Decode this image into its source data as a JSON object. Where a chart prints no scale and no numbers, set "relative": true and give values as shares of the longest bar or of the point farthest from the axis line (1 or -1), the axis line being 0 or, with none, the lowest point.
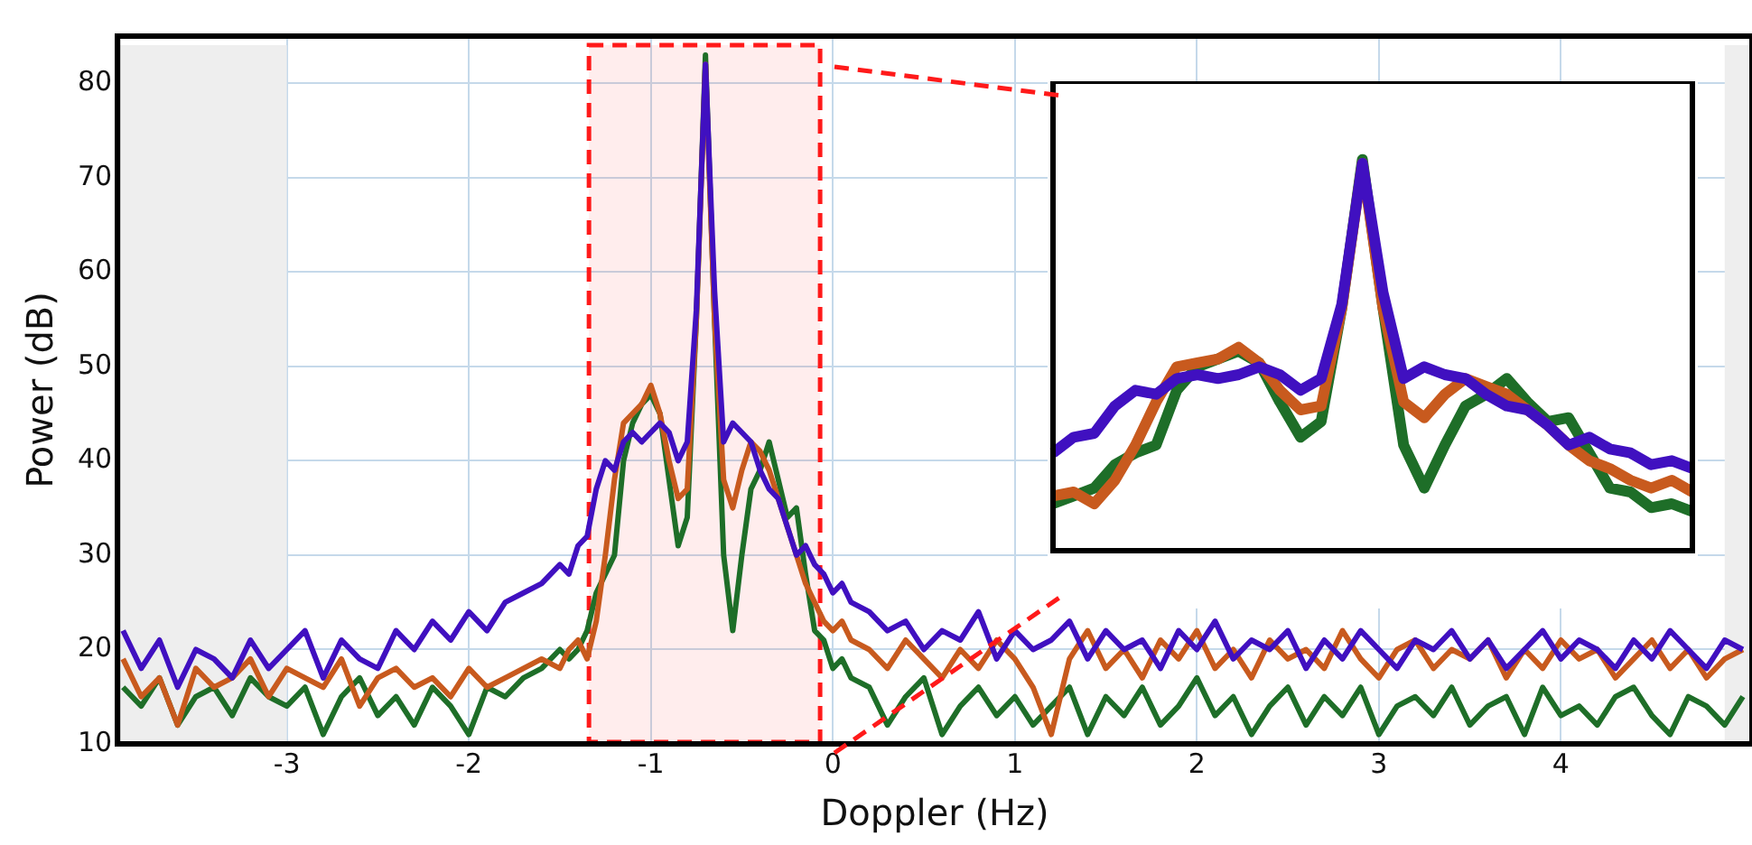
{
  "chart_data": [
    {
      "type": "line",
      "xlabel": "Doppler (Hz)",
      "ylabel": "Power (dB)",
      "x": [
        -3.9,
        -3.8,
        -3.7,
        -3.6,
        -3.5,
        -3.4,
        -3.3,
        -3.2,
        -3.1,
        -3.0,
        -2.9,
        -2.8,
        -2.7,
        -2.6,
        -2.5,
        -2.4,
        -2.3,
        -2.2,
        -2.1,
        -2.0,
        -1.9,
        -1.8,
        -1.7,
        -1.6,
        -1.5,
        -1.45,
        -1.4,
        -1.35,
        -1.3,
        -1.25,
        -1.2,
        -1.15,
        -1.1,
        -1.05,
        -1.0,
        -0.95,
        -0.9,
        -0.85,
        -0.8,
        -0.75,
        -0.7,
        -0.65,
        -0.6,
        -0.55,
        -0.5,
        -0.45,
        -0.4,
        -0.35,
        -0.3,
        -0.25,
        -0.2,
        -0.15,
        -0.1,
        -0.05,
        0,
        0.05,
        0.1,
        0.2,
        0.3,
        0.4,
        0.5,
        0.6,
        0.7,
        0.8,
        0.9,
        1.0,
        1.1,
        1.2,
        1.3,
        1.4,
        1.5,
        1.6,
        1.7,
        1.8,
        1.9,
        2.0,
        2.1,
        2.2,
        2.3,
        2.4,
        2.5,
        2.6,
        2.7,
        2.8,
        2.9,
        3.0,
        3.1,
        3.2,
        3.3,
        3.4,
        3.5,
        3.6,
        3.7,
        3.8,
        3.9,
        4.0,
        4.1,
        4.2,
        4.3,
        4.4,
        4.5,
        4.6,
        4.7,
        4.8,
        4.9,
        5.0
      ],
      "series": [
        {
          "color": "#4010c0",
          "values": [
            22,
            18,
            21,
            16,
            20,
            19,
            17,
            21,
            18,
            20,
            22,
            17,
            21,
            19,
            18,
            22,
            20,
            23,
            21,
            24,
            22,
            25,
            26,
            27,
            29,
            28,
            31,
            32,
            37,
            40,
            39,
            42,
            43,
            42,
            43,
            44,
            43,
            40,
            42,
            56,
            82,
            58,
            42,
            44,
            43,
            42,
            39,
            37,
            36,
            33,
            30,
            31,
            29,
            28,
            26,
            27,
            25,
            24,
            22,
            23,
            20,
            22,
            21,
            24,
            19,
            22,
            20,
            21,
            23,
            19,
            22,
            20,
            21,
            18,
            22,
            20,
            23,
            19,
            21,
            20,
            22,
            18,
            21,
            19,
            22,
            20,
            18,
            21,
            20,
            22,
            19,
            21,
            18,
            20,
            22,
            19,
            21,
            20,
            18,
            21,
            19,
            22,
            20,
            18,
            21,
            20
          ]
        },
        {
          "color": "#c85a1e",
          "values": [
            19,
            15,
            17,
            12,
            18,
            16,
            17,
            19,
            15,
            18,
            17,
            16,
            19,
            14,
            17,
            18,
            16,
            17,
            15,
            18,
            16,
            17,
            18,
            19,
            18,
            20,
            21,
            19,
            23,
            30,
            38,
            44,
            45,
            46,
            48,
            45,
            40,
            36,
            37,
            55,
            82,
            55,
            38,
            35,
            39,
            42,
            41,
            39,
            36,
            33,
            30,
            27,
            25,
            23,
            22,
            23,
            21,
            20,
            18,
            21,
            19,
            17,
            20,
            18,
            21,
            19,
            16,
            11,
            19,
            22,
            18,
            20,
            17,
            21,
            19,
            22,
            18,
            20,
            17,
            21,
            19,
            20,
            18,
            22,
            19,
            17,
            20,
            21,
            18,
            20,
            19,
            21,
            17,
            20,
            18,
            21,
            19,
            20,
            17,
            19,
            21,
            18,
            20,
            17,
            19,
            20
          ]
        },
        {
          "color": "#1e6e28",
          "values": [
            16,
            14,
            17,
            12,
            15,
            16,
            13,
            17,
            15,
            14,
            16,
            11,
            15,
            17,
            13,
            15,
            12,
            16,
            14,
            11,
            16,
            15,
            17,
            18,
            20,
            19,
            20,
            22,
            26,
            28,
            30,
            40,
            44,
            46,
            47,
            45,
            38,
            31,
            34,
            55,
            83,
            55,
            30,
            22,
            30,
            37,
            39,
            42,
            38,
            34,
            35,
            28,
            22,
            21,
            18,
            19,
            17,
            16,
            12,
            15,
            17,
            11,
            14,
            16,
            13,
            15,
            12,
            14,
            16,
            11,
            15,
            13,
            16,
            12,
            14,
            17,
            13,
            15,
            11,
            14,
            16,
            12,
            15,
            13,
            16,
            11,
            14,
            15,
            13,
            16,
            12,
            14,
            15,
            11,
            16,
            13,
            14,
            12,
            15,
            16,
            13,
            11,
            15,
            14,
            12,
            15
          ]
        }
      ],
      "xlim": [
        -3.93,
        5.05
      ],
      "ylim": [
        10,
        85
      ],
      "xticks": [
        -3,
        -2,
        -1,
        0,
        1,
        2,
        3,
        4
      ],
      "yticks": [
        10,
        20,
        30,
        40,
        50,
        60,
        70,
        80
      ],
      "grid": true,
      "bands": [
        {
          "axis": "x",
          "from": -3.93,
          "to": -3,
          "color": "#eeeeee"
        },
        {
          "axis": "x",
          "from": 4.9,
          "to": 5.05,
          "color": "#eeeeee"
        },
        {
          "axis": "x",
          "from": -1.34,
          "to": -0.07,
          "color": "#ff1a1a"
        }
      ]
    },
    {
      "type": "line",
      "relative": true,
      "categories": [
        null,
        null,
        null,
        null,
        null,
        null,
        null,
        null,
        null,
        null,
        null,
        null,
        null,
        null,
        null,
        null,
        null,
        null,
        null,
        null,
        null,
        null,
        null,
        null,
        null,
        null,
        null,
        null,
        null,
        null,
        null,
        null
      ],
      "series": [
        {
          "color": "#4010c0",
          "values": [
            0.25,
            0.29,
            0.3,
            0.37,
            0.41,
            0.4,
            0.44,
            0.45,
            0.44,
            0.45,
            0.47,
            0.45,
            0.41,
            0.44,
            0.63,
            0.99,
            0.66,
            0.44,
            0.47,
            0.45,
            0.44,
            0.4,
            0.37,
            0.36,
            0.32,
            0.27,
            0.29,
            0.26,
            0.25,
            0.22,
            0.23,
            0.21
          ]
        },
        {
          "color": "#c85a1e",
          "values": [
            0.14,
            0.15,
            0.12,
            0.18,
            0.27,
            0.38,
            0.47,
            0.48,
            0.49,
            0.52,
            0.48,
            0.41,
            0.36,
            0.37,
            0.62,
            0.99,
            0.62,
            0.38,
            0.34,
            0.4,
            0.44,
            0.42,
            0.4,
            0.36,
            0.32,
            0.27,
            0.23,
            0.21,
            0.18,
            0.16,
            0.18,
            0.15
          ]
        },
        {
          "color": "#1e6e28",
          "values": [
            0.12,
            0.14,
            0.16,
            0.22,
            0.25,
            0.27,
            0.41,
            0.47,
            0.49,
            0.51,
            0.48,
            0.38,
            0.29,
            0.33,
            0.62,
            1,
            0.62,
            0.27,
            0.16,
            0.27,
            0.37,
            0.4,
            0.44,
            0.38,
            0.33,
            0.34,
            0.25,
            0.16,
            0.15,
            0.11,
            0.12,
            0.1
          ]
        }
      ]
    }
  ]
}
